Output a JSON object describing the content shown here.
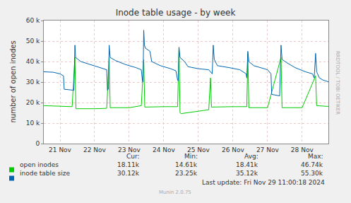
{
  "chart_data": {
    "type": "line",
    "title": "Inode table usage - by week",
    "y_label": "number of open inodes",
    "side_text": "RRDTOOL / TOBI OETIKER",
    "footer": "Last update: Fri Nov 29 11:00:18 2024",
    "credit": "Munin 2.0.75",
    "stats_columns": [
      "Cur:",
      "Min:",
      "Avg:",
      "Max:"
    ],
    "grid": true,
    "legend": "bottom",
    "xlim": [
      21.03,
      29.26
    ],
    "xticks": [
      {
        "value": 21.5,
        "label": "21 Nov"
      },
      {
        "value": 22.5,
        "label": "22 Nov"
      },
      {
        "value": 23.5,
        "label": "23 Nov"
      },
      {
        "value": 24.5,
        "label": "24 Nov"
      },
      {
        "value": 25.5,
        "label": "25 Nov"
      },
      {
        "value": 26.5,
        "label": "26 Nov"
      },
      {
        "value": 27.5,
        "label": "27 Nov"
      },
      {
        "value": 28.5,
        "label": "28 Nov"
      }
    ],
    "ylim": [
      0,
      60000
    ],
    "yticks": [
      0,
      {
        "value": 10000,
        "label": "10 k"
      },
      {
        "value": 20000,
        "label": "20 k"
      },
      {
        "value": 30000,
        "label": "30 k"
      },
      {
        "value": 40000,
        "label": "40 k"
      },
      {
        "value": 50000,
        "label": "50 k"
      },
      {
        "value": 60000,
        "label": "60 k"
      }
    ],
    "series": [
      {
        "name": "open inodes",
        "color": "#00cc00",
        "stats": [
          "18.11k",
          "14.61k",
          "18.41k",
          "46.74k"
        ],
        "x": [
          21.03,
          21.5,
          21.85,
          21.93,
          21.96,
          22.5,
          22.85,
          22.92,
          22.95,
          23.5,
          23.85,
          23.92,
          23.95,
          24.5,
          24.9,
          24.94,
          24.97,
          25.0,
          25.4,
          25.8,
          25.85,
          25.88,
          26.5,
          26.9,
          26.93,
          26.96,
          27.5,
          27.89,
          27.92,
          28.5,
          28.89,
          28.92,
          29.26
        ],
        "values": [
          18500,
          18300,
          18000,
          42000,
          17000,
          17000,
          17200,
          42000,
          17500,
          17500,
          18500,
          41000,
          17800,
          18000,
          18000,
          46740,
          15000,
          14610,
          15500,
          16500,
          32000,
          17800,
          18000,
          18000,
          44000,
          17500,
          17500,
          42000,
          17500,
          17500,
          33000,
          18500,
          18110
        ]
      },
      {
        "name": "inode table size",
        "color": "#0066b3",
        "stats": [
          "30.12k",
          "23.25k",
          "35.12k",
          "55.30k"
        ],
        "x": [
          21.03,
          21.3,
          21.5,
          21.6,
          21.62,
          21.9,
          21.93,
          21.95,
          22.1,
          22.4,
          22.7,
          22.85,
          22.87,
          22.9,
          22.92,
          22.95,
          23.1,
          23.4,
          23.7,
          23.85,
          23.88,
          23.9,
          23.92,
          23.94,
          23.97,
          24.1,
          24.15,
          24.4,
          24.7,
          24.85,
          24.9,
          24.92,
          24.94,
          24.97,
          25.1,
          25.2,
          25.5,
          25.8,
          25.9,
          25.93,
          25.96,
          26.05,
          26.4,
          26.7,
          26.88,
          26.9,
          26.93,
          26.96,
          27.1,
          27.3,
          27.5,
          27.6,
          27.62,
          27.85,
          27.89,
          27.92,
          28.05,
          28.3,
          28.6,
          28.8,
          28.85,
          28.89,
          28.92,
          29.0,
          29.1,
          29.26
        ],
        "values": [
          35000,
          34800,
          34000,
          33000,
          26500,
          26000,
          48000,
          42000,
          40000,
          38500,
          37000,
          36000,
          26000,
          26500,
          48000,
          42000,
          40500,
          38500,
          37000,
          36000,
          31000,
          30000,
          55300,
          48000,
          46500,
          45000,
          40000,
          38000,
          36500,
          35500,
          31000,
          30500,
          47000,
          42000,
          40000,
          37500,
          36500,
          36000,
          34000,
          48000,
          41000,
          38000,
          37000,
          36000,
          34000,
          32000,
          45000,
          40000,
          38000,
          37000,
          36000,
          34000,
          24000,
          23250,
          48000,
          41000,
          39500,
          37000,
          35000,
          34000,
          32000,
          44000,
          35000,
          32000,
          31000,
          30120
        ]
      }
    ]
  }
}
